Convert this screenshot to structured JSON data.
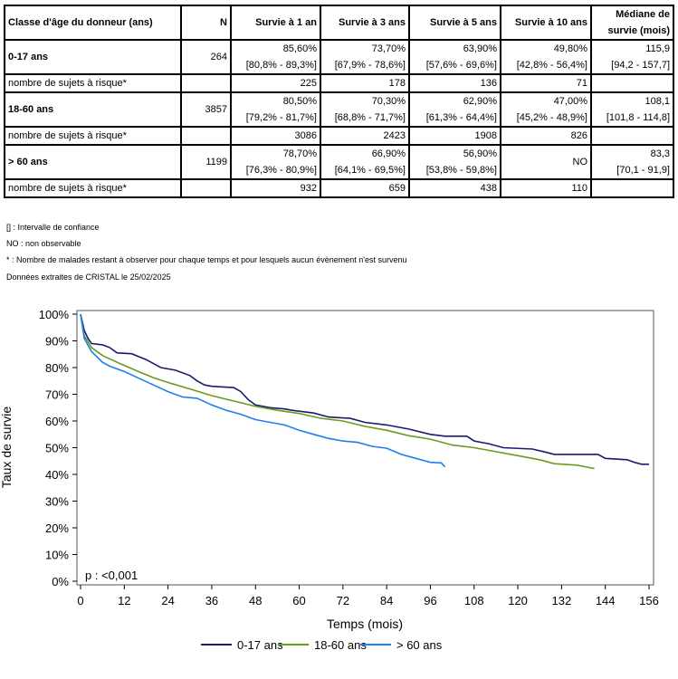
{
  "table": {
    "headers": [
      "Classe d'âge du donneur (ans)",
      "N",
      "Survie à 1 an",
      "Survie à 3 ans",
      "Survie à 5 ans",
      "Survie à 10 ans",
      [
        "Médiane de",
        "survie (mois)"
      ]
    ],
    "groups": [
      {
        "label": "0-17 ans",
        "n": "264",
        "values": [
          [
            "85,60%",
            "[80,8% - 89,3%]"
          ],
          [
            "73,70%",
            "[67,9% - 78,6%]"
          ],
          [
            "63,90%",
            "[57,6% - 69,6%]"
          ],
          [
            "49,80%",
            "[42,8% - 56,4%]"
          ],
          [
            "115,9",
            "[94,2 - 157,7]"
          ]
        ],
        "risk_label": "nombre de sujets à risque*",
        "risk": [
          "225",
          "178",
          "136",
          "71",
          ""
        ]
      },
      {
        "label": "18-60 ans",
        "n": "3857",
        "values": [
          [
            "80,50%",
            "[79,2% - 81,7%]"
          ],
          [
            "70,30%",
            "[68,8% - 71,7%]"
          ],
          [
            "62,90%",
            "[61,3% - 64,4%]"
          ],
          [
            "47,00%",
            "[45,2% - 48,9%]"
          ],
          [
            "108,1",
            "[101,8 - 114,8]"
          ]
        ],
        "risk_label": "nombre de sujets à risque*",
        "risk": [
          "3086",
          "2423",
          "1908",
          "826",
          ""
        ]
      },
      {
        "label": "> 60 ans",
        "n": "1199",
        "values": [
          [
            "78,70%",
            "[76,3% - 80,9%]"
          ],
          [
            "66,90%",
            "[64,1% - 69,5%]"
          ],
          [
            "56,90%",
            "[53,8% - 59,8%]"
          ],
          [
            "NO"
          ],
          [
            "83,3",
            "[70,1 - 91,9]"
          ]
        ],
        "risk_label": "nombre de sujets à risque*",
        "risk": [
          "932",
          "659",
          "438",
          "110",
          ""
        ]
      }
    ]
  },
  "notes": [
    "[] : Intervalle de confiance",
    "NO : non observable",
    "* : Nombre de malades restant à observer pour chaque temps et pour lesquels aucun évènement n'est survenu",
    "Données extraites de CRISTAL le 25/02/2025"
  ],
  "chart_data": {
    "type": "line",
    "title": "",
    "xlabel": "Temps (mois)",
    "ylabel": "Taux de survie",
    "xlim": [
      0,
      156
    ],
    "ylim": [
      0,
      100
    ],
    "xticks": [
      "0",
      "12",
      "24",
      "36",
      "48",
      "60",
      "72",
      "84",
      "96",
      "108",
      "120",
      "132",
      "144",
      "156"
    ],
    "yticks": [
      "0%",
      "10%",
      "20%",
      "30%",
      "40%",
      "50%",
      "60%",
      "70%",
      "80%",
      "90%",
      "100%"
    ],
    "annotation": "p : <0,001",
    "legend_position": "bottom",
    "series": [
      {
        "name": "0-17 ans",
        "color": "#1a1a6e",
        "points": [
          [
            0,
            100
          ],
          [
            1,
            94
          ],
          [
            2,
            91
          ],
          [
            3,
            89
          ],
          [
            6,
            88.5
          ],
          [
            8,
            87.5
          ],
          [
            10,
            85.5
          ],
          [
            14,
            85.2
          ],
          [
            18,
            83
          ],
          [
            22,
            80
          ],
          [
            26,
            79
          ],
          [
            30,
            77
          ],
          [
            32,
            75
          ],
          [
            34,
            73.5
          ],
          [
            36,
            73
          ],
          [
            42,
            72.5
          ],
          [
            44,
            71
          ],
          [
            46,
            68
          ],
          [
            48,
            66
          ],
          [
            52,
            65
          ],
          [
            56,
            64.5
          ],
          [
            58,
            64
          ],
          [
            64,
            63
          ],
          [
            68,
            61.5
          ],
          [
            74,
            61
          ],
          [
            78,
            59.5
          ],
          [
            84,
            58.5
          ],
          [
            90,
            57
          ],
          [
            96,
            55
          ],
          [
            100,
            54.3
          ],
          [
            106,
            54.3
          ],
          [
            108,
            52.5
          ],
          [
            112,
            51.5
          ],
          [
            116,
            50
          ],
          [
            124,
            49.5
          ],
          [
            128,
            48.2
          ],
          [
            130,
            47.5
          ],
          [
            142,
            47.5
          ],
          [
            144,
            46
          ],
          [
            150,
            45.5
          ],
          [
            152,
            44.5
          ],
          [
            154,
            43.8
          ],
          [
            156,
            43.8
          ]
        ]
      },
      {
        "name": "18-60 ans",
        "color": "#6a9a1f",
        "points": [
          [
            0,
            100
          ],
          [
            1,
            92
          ],
          [
            3,
            87.5
          ],
          [
            6,
            84.5
          ],
          [
            10,
            82
          ],
          [
            15,
            79
          ],
          [
            20,
            76.2
          ],
          [
            25,
            74
          ],
          [
            30,
            72
          ],
          [
            36,
            69.5
          ],
          [
            42,
            67.5
          ],
          [
            48,
            65.5
          ],
          [
            54,
            64
          ],
          [
            60,
            62.8
          ],
          [
            66,
            61
          ],
          [
            72,
            60
          ],
          [
            78,
            58
          ],
          [
            84,
            56.5
          ],
          [
            90,
            54.5
          ],
          [
            96,
            53.2
          ],
          [
            102,
            51
          ],
          [
            108,
            50
          ],
          [
            114,
            48.5
          ],
          [
            120,
            47
          ],
          [
            126,
            45.5
          ],
          [
            130,
            44
          ],
          [
            136,
            43.5
          ],
          [
            141,
            42.2
          ]
        ]
      },
      {
        "name": "> 60 ans",
        "color": "#1e7ef0",
        "points": [
          [
            0,
            100
          ],
          [
            1,
            91
          ],
          [
            3,
            86
          ],
          [
            6,
            82
          ],
          [
            8,
            80.5
          ],
          [
            12,
            78.5
          ],
          [
            16,
            76
          ],
          [
            20,
            73.5
          ],
          [
            24,
            71
          ],
          [
            28,
            69
          ],
          [
            32,
            68.5
          ],
          [
            36,
            66
          ],
          [
            40,
            64
          ],
          [
            44,
            62.5
          ],
          [
            48,
            60.5
          ],
          [
            52,
            59.5
          ],
          [
            56,
            58.5
          ],
          [
            60,
            56.5
          ],
          [
            64,
            55
          ],
          [
            68,
            53.5
          ],
          [
            72,
            52.5
          ],
          [
            76,
            52
          ],
          [
            80,
            50.5
          ],
          [
            84,
            49.8
          ],
          [
            88,
            47.5
          ],
          [
            92,
            46
          ],
          [
            96,
            44.5
          ],
          [
            99,
            44.3
          ],
          [
            100,
            42.8
          ]
        ]
      }
    ]
  }
}
